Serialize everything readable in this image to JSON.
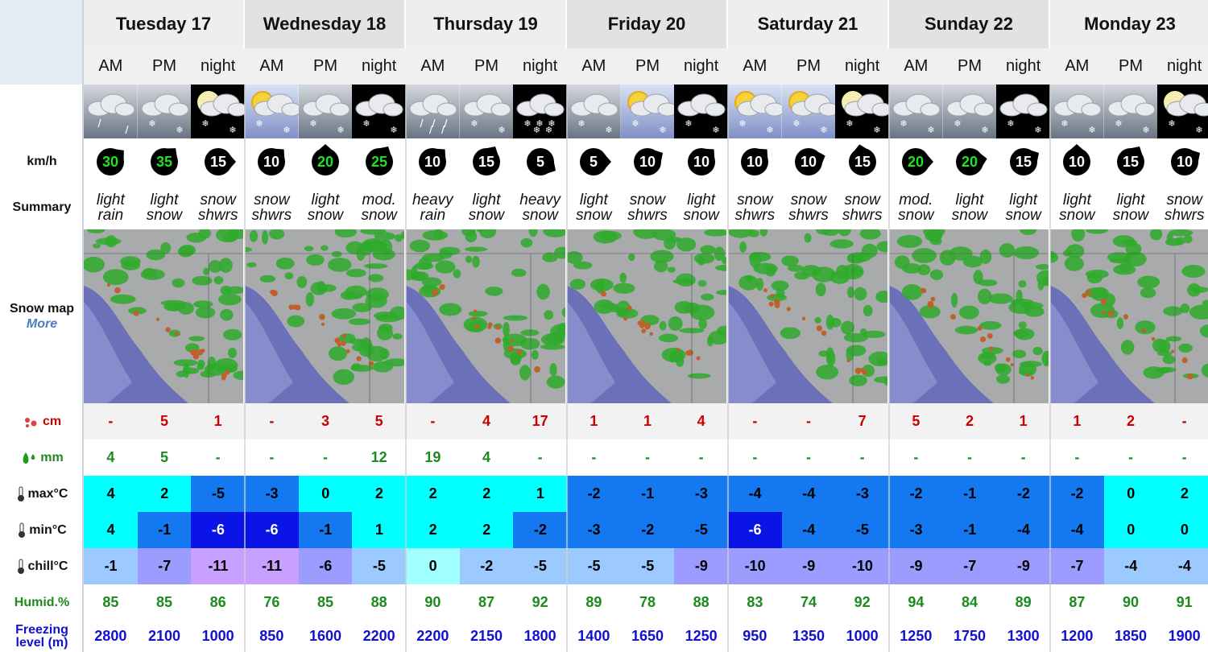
{
  "days": [
    "Tuesday 17",
    "Wednesday 18",
    "Thursday 19",
    "Friday 20",
    "Saturday 21",
    "Sunday 22",
    "Monday 23"
  ],
  "periods": [
    "AM",
    "PM",
    "night",
    "AM",
    "PM",
    "night",
    "AM",
    "PM",
    "night",
    "AM",
    "PM",
    "night",
    "AM",
    "PM",
    "night",
    "AM",
    "PM",
    "night",
    "AM",
    "PM",
    "night"
  ],
  "labels": {
    "wind": "km/h",
    "summary": "Summary",
    "snow_map": "Snow map",
    "more": "More",
    "snow": "cm",
    "rain": "mm",
    "max": "max°C",
    "min": "min°C",
    "chill": "chill°C",
    "humidity": "Humid.%",
    "freezing": "Freezing level (m)"
  },
  "wind": [
    30,
    35,
    15,
    10,
    20,
    25,
    10,
    15,
    5,
    5,
    10,
    10,
    10,
    10,
    15,
    20,
    20,
    15,
    10,
    15,
    10
  ],
  "summary": [
    "light rain",
    "light snow",
    "snow shwrs",
    "snow shwrs",
    "light snow",
    "mod. snow",
    "heavy rain",
    "light snow",
    "heavy snow",
    "light snow",
    "snow shwrs",
    "light snow",
    "snow shwrs",
    "snow shwrs",
    "snow shwrs",
    "mod. snow",
    "light snow",
    "light snow",
    "light snow",
    "light snow",
    "snow shwrs"
  ],
  "snow": [
    "-",
    5,
    1,
    "-",
    3,
    5,
    "-",
    4,
    17,
    1,
    1,
    4,
    "-",
    "-",
    7,
    5,
    2,
    1,
    1,
    2,
    "-"
  ],
  "rain": [
    4,
    5,
    "-",
    "-",
    "-",
    12,
    19,
    4,
    "-",
    "-",
    "-",
    "-",
    "-",
    "-",
    "-",
    "-",
    "-",
    "-",
    "-",
    "-",
    "-"
  ],
  "max": [
    4,
    2,
    -5,
    -3,
    0,
    2,
    2,
    2,
    1,
    -2,
    -1,
    -3,
    -4,
    -4,
    -3,
    -2,
    -1,
    -2,
    -2,
    0,
    2
  ],
  "min": [
    4,
    -1,
    -6,
    -6,
    -1,
    1,
    2,
    2,
    -2,
    -3,
    -2,
    -5,
    -6,
    -4,
    -5,
    -3,
    -1,
    -4,
    -4,
    0,
    0
  ],
  "chill": [
    -1,
    -7,
    -11,
    -11,
    -6,
    -5,
    0,
    -2,
    -5,
    -5,
    -5,
    -9,
    -10,
    -9,
    -10,
    -9,
    -7,
    -9,
    -7,
    -4,
    -4
  ],
  "humidity": [
    85,
    85,
    86,
    76,
    85,
    88,
    90,
    87,
    92,
    89,
    78,
    88,
    83,
    74,
    92,
    94,
    84,
    89,
    87,
    90,
    91
  ],
  "freezing": [
    2800,
    2100,
    1000,
    850,
    1600,
    2200,
    2200,
    2150,
    1800,
    1400,
    1650,
    1250,
    950,
    1350,
    1000,
    1250,
    1750,
    1300,
    1200,
    1850,
    1900
  ]
}
